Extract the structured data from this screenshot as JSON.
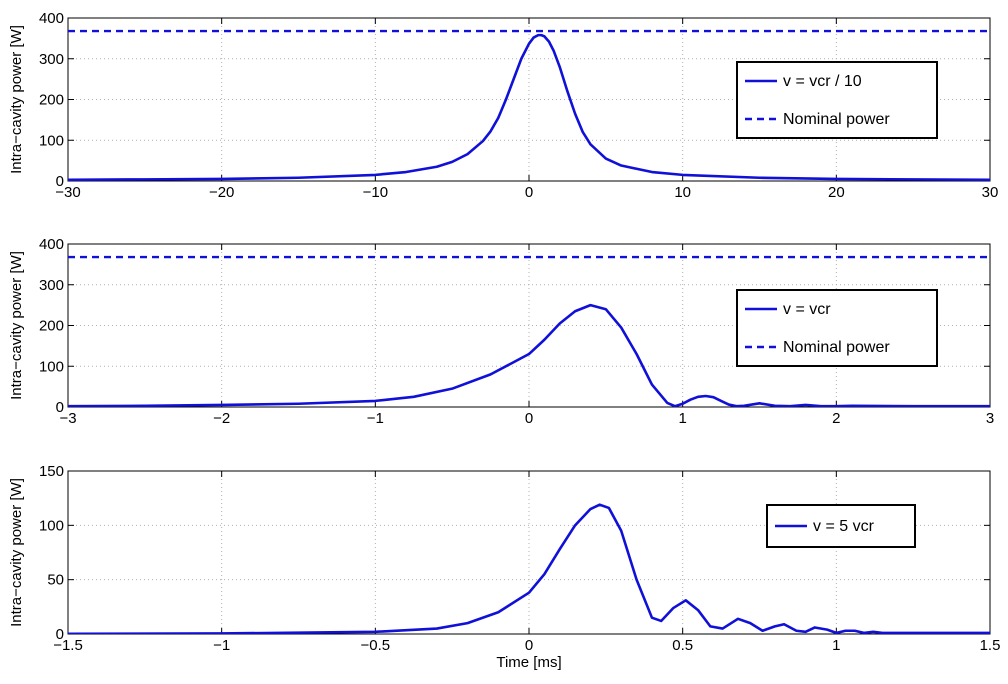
{
  "colors": {
    "series": "#1010d8",
    "axis": "#000000",
    "grid": "#b0b0b0",
    "background": "#ffffff"
  },
  "chart_data": [
    {
      "type": "line",
      "xlim": [
        -30,
        30
      ],
      "ylim": [
        0,
        400
      ],
      "xticks": [
        -30,
        -20,
        -10,
        0,
        10,
        20,
        30
      ],
      "yticks": [
        0,
        100,
        200,
        300,
        400
      ],
      "xtick_labels": [
        "−30",
        "−20",
        "−10",
        "0",
        "10",
        "20",
        "30"
      ],
      "ytick_labels": [
        "0",
        "100",
        "200",
        "300",
        "400"
      ],
      "xlabel": "",
      "ylabel": "Intra−cavity power [W]",
      "grid": true,
      "legend_position": "right",
      "series": [
        {
          "name": "v = vcr / 10",
          "style": "solid",
          "x": [
            -30,
            -25,
            -20,
            -15,
            -10,
            -8,
            -6,
            -5,
            -4,
            -3,
            -2.5,
            -2,
            -1.5,
            -1,
            -0.5,
            0,
            0.3,
            0.6,
            0.8,
            1.0,
            1.3,
            1.6,
            2,
            2.5,
            3,
            3.5,
            4,
            5,
            6,
            8,
            10,
            15,
            20,
            25,
            30
          ],
          "y": [
            3,
            4,
            5,
            8,
            15,
            22,
            35,
            47,
            66,
            98,
            122,
            155,
            200,
            250,
            300,
            337,
            352,
            358,
            358,
            355,
            342,
            320,
            280,
            220,
            165,
            120,
            90,
            55,
            38,
            22,
            15,
            8,
            5,
            4,
            3
          ]
        },
        {
          "name": "Nominal power",
          "style": "dashed",
          "x": [
            -30,
            30
          ],
          "y": [
            368,
            368
          ]
        }
      ]
    },
    {
      "type": "line",
      "xlim": [
        -3,
        3
      ],
      "ylim": [
        0,
        400
      ],
      "xticks": [
        -3,
        -2,
        -1,
        0,
        1,
        2,
        3
      ],
      "yticks": [
        0,
        100,
        200,
        300,
        400
      ],
      "xtick_labels": [
        "−3",
        "−2",
        "−1",
        "0",
        "1",
        "2",
        "3"
      ],
      "ytick_labels": [
        "0",
        "100",
        "200",
        "300",
        "400"
      ],
      "xlabel": "",
      "ylabel": "Intra−cavity power [W]",
      "grid": true,
      "legend_position": "right",
      "series": [
        {
          "name": "v = vcr",
          "style": "solid",
          "x": [
            -3,
            -2.5,
            -2,
            -1.5,
            -1,
            -0.75,
            -0.5,
            -0.25,
            0,
            0.1,
            0.2,
            0.3,
            0.4,
            0.5,
            0.6,
            0.7,
            0.8,
            0.9,
            0.95,
            1.0,
            1.05,
            1.1,
            1.15,
            1.2,
            1.25,
            1.3,
            1.35,
            1.4,
            1.5,
            1.6,
            1.7,
            1.8,
            1.9,
            2.0,
            2.1,
            2.5,
            3
          ],
          "y": [
            2,
            3,
            5,
            8,
            15,
            25,
            45,
            80,
            130,
            165,
            205,
            235,
            250,
            240,
            195,
            130,
            55,
            10,
            2,
            8,
            18,
            25,
            27,
            24,
            15,
            6,
            2,
            3,
            9,
            3,
            2,
            5,
            2,
            2,
            3,
            2,
            2
          ]
        },
        {
          "name": "Nominal power",
          "style": "dashed",
          "x": [
            -3,
            3
          ],
          "y": [
            368,
            368
          ]
        }
      ]
    },
    {
      "type": "line",
      "xlim": [
        -1.5,
        1.5
      ],
      "ylim": [
        0,
        150
      ],
      "xticks": [
        -1.5,
        -1,
        -0.5,
        0,
        0.5,
        1,
        1.5
      ],
      "yticks": [
        0,
        50,
        100,
        150
      ],
      "xtick_labels": [
        "−1.5",
        "−1",
        "−0.5",
        "0",
        "0.5",
        "1",
        "1.5"
      ],
      "ytick_labels": [
        "0",
        "50",
        "100",
        "150"
      ],
      "xlabel": "Time [ms]",
      "ylabel": "Intra−cavity power [W]",
      "grid": true,
      "legend_position": "right",
      "series": [
        {
          "name": "v = 5 vcr",
          "style": "solid",
          "x": [
            -1.5,
            -1,
            -0.5,
            -0.3,
            -0.2,
            -0.1,
            0,
            0.05,
            0.1,
            0.15,
            0.2,
            0.23,
            0.26,
            0.3,
            0.35,
            0.4,
            0.43,
            0.47,
            0.51,
            0.55,
            0.59,
            0.63,
            0.68,
            0.72,
            0.76,
            0.8,
            0.83,
            0.87,
            0.9,
            0.93,
            0.97,
            1.0,
            1.03,
            1.06,
            1.09,
            1.12,
            1.15,
            1.2,
            1.25,
            1.3,
            1.35,
            1.4,
            1.45,
            1.5
          ],
          "y": [
            0.2,
            0.5,
            2,
            5,
            10,
            20,
            38,
            55,
            78,
            100,
            115,
            119,
            116,
            95,
            50,
            15,
            12,
            24,
            31,
            22,
            7,
            5,
            14,
            10,
            3,
            7,
            9,
            3,
            2,
            6,
            4,
            1,
            3,
            3,
            1,
            2,
            1,
            1,
            1,
            1,
            1,
            1,
            1,
            1
          ]
        }
      ]
    }
  ]
}
